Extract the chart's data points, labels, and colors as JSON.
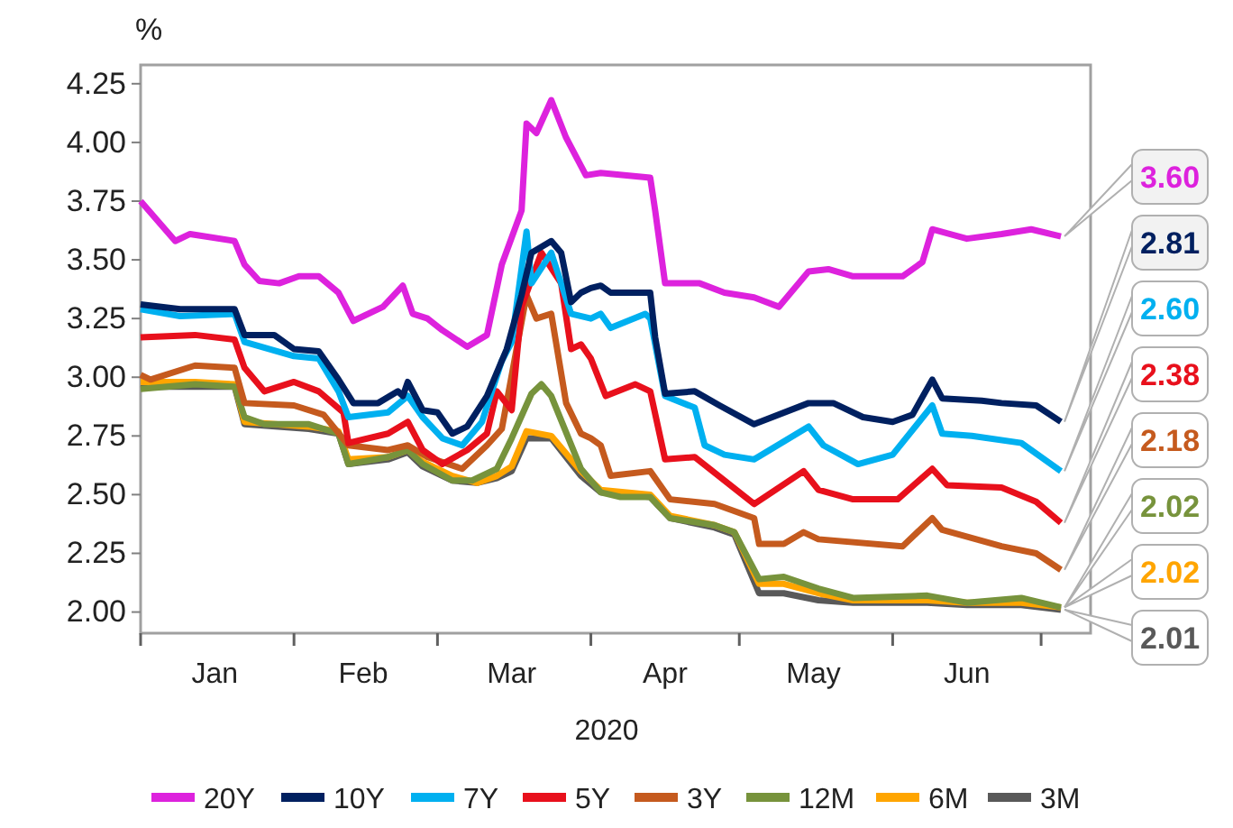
{
  "chart_data": {
    "type": "line",
    "ylabel": "%",
    "xlabel": "2020",
    "xlim": [
      "2020-01-01",
      "2020-07-11"
    ],
    "xticks": [
      {
        "value": "2020-01-01",
        "label": null
      },
      {
        "value": "2020-01-16",
        "label": "Jan"
      },
      {
        "value": "2020-02-01",
        "label": null
      },
      {
        "value": "2020-02-15",
        "label": "Feb"
      },
      {
        "value": "2020-03-01",
        "label": null
      },
      {
        "value": "2020-03-16",
        "label": "Mar"
      },
      {
        "value": "2020-04-01",
        "label": null
      },
      {
        "value": "2020-04-16",
        "label": "Apr"
      },
      {
        "value": "2020-05-01",
        "label": null
      },
      {
        "value": "2020-05-16",
        "label": "May"
      },
      {
        "value": "2020-06-01",
        "label": null
      },
      {
        "value": "2020-06-16",
        "label": "Jun"
      },
      {
        "value": "2020-07-01",
        "label": null
      }
    ],
    "ylim": [
      1.91,
      4.33
    ],
    "yticks": [
      {
        "value": 2,
        "label": "2.00"
      },
      {
        "value": 2.25,
        "label": "2.25"
      },
      {
        "value": 2.5,
        "label": "2.50"
      },
      {
        "value": 2.75,
        "label": "2.75"
      },
      {
        "value": 3,
        "label": "3.00"
      },
      {
        "value": 3.25,
        "label": "3.25"
      },
      {
        "value": 3.5,
        "label": "3.50"
      },
      {
        "value": 3.75,
        "label": "3.75"
      },
      {
        "value": 4,
        "label": "4.00"
      },
      {
        "value": 4.25,
        "label": "4.25"
      }
    ],
    "grid": false,
    "legend": "bottom",
    "marker": "none",
    "line_style": "solid",
    "series": [
      {
        "name": "20Y",
        "color": "#dd22dd",
        "x": [
          "2020-01-01",
          "2020-01-08",
          "2020-01-11",
          "2020-01-20",
          "2020-01-22",
          "2020-01-25",
          "2020-01-29",
          "2020-02-02",
          "2020-02-06",
          "2020-02-10",
          "2020-02-13",
          "2020-02-19",
          "2020-02-23",
          "2020-02-25",
          "2020-02-28",
          "2020-03-02",
          "2020-03-07",
          "2020-03-11",
          "2020-03-14",
          "2020-03-18",
          "2020-03-19",
          "2020-03-21",
          "2020-03-24",
          "2020-03-27",
          "2020-03-31",
          "2020-04-03",
          "2020-04-13",
          "2020-04-14",
          "2020-04-16",
          "2020-04-23",
          "2020-04-28",
          "2020-05-04",
          "2020-05-09",
          "2020-05-15",
          "2020-05-19",
          "2020-05-24",
          "2020-06-03",
          "2020-06-07",
          "2020-06-09",
          "2020-06-16",
          "2020-06-23",
          "2020-06-29",
          "2020-07-05"
        ],
        "values": [
          3.75,
          3.58,
          3.61,
          3.58,
          3.48,
          3.41,
          3.4,
          3.43,
          3.43,
          3.36,
          3.24,
          3.3,
          3.39,
          3.27,
          3.25,
          3.2,
          3.13,
          3.18,
          3.48,
          3.71,
          4.08,
          4.04,
          4.18,
          4.02,
          3.86,
          3.87,
          3.85,
          3.71,
          3.4,
          3.4,
          3.36,
          3.34,
          3.3,
          3.45,
          3.46,
          3.43,
          3.43,
          3.49,
          3.63,
          3.59,
          3.61,
          3.63,
          3.6
        ]
      },
      {
        "name": "10Y",
        "color": "#002060",
        "x": [
          "2020-01-01",
          "2020-01-09",
          "2020-01-20",
          "2020-01-22",
          "2020-01-28",
          "2020-02-01",
          "2020-02-06",
          "2020-02-10",
          "2020-02-13",
          "2020-02-18",
          "2020-02-22",
          "2020-02-23",
          "2020-02-24",
          "2020-02-27",
          "2020-03-01",
          "2020-03-04",
          "2020-03-07",
          "2020-03-11",
          "2020-03-15",
          "2020-03-18",
          "2020-03-20",
          "2020-03-24",
          "2020-03-26",
          "2020-03-28",
          "2020-03-30",
          "2020-04-01",
          "2020-04-03",
          "2020-04-05",
          "2020-04-13",
          "2020-04-14",
          "2020-04-16",
          "2020-04-22",
          "2020-04-27",
          "2020-05-04",
          "2020-05-15",
          "2020-05-20",
          "2020-05-26",
          "2020-06-01",
          "2020-06-05",
          "2020-06-09",
          "2020-06-11",
          "2020-06-19",
          "2020-06-23",
          "2020-06-30",
          "2020-07-05"
        ],
        "values": [
          3.31,
          3.29,
          3.29,
          3.18,
          3.18,
          3.12,
          3.11,
          2.99,
          2.89,
          2.89,
          2.94,
          2.92,
          2.98,
          2.86,
          2.85,
          2.76,
          2.79,
          2.92,
          3.12,
          3.35,
          3.53,
          3.58,
          3.53,
          3.32,
          3.36,
          3.38,
          3.39,
          3.36,
          3.36,
          3.17,
          2.93,
          2.94,
          2.88,
          2.8,
          2.89,
          2.89,
          2.83,
          2.81,
          2.84,
          2.99,
          2.91,
          2.9,
          2.89,
          2.88,
          2.81
        ]
      },
      {
        "name": "7Y",
        "color": "#00b0f0",
        "x": [
          "2020-01-01",
          "2020-01-09",
          "2020-01-20",
          "2020-01-22",
          "2020-02-01",
          "2020-02-06",
          "2020-02-10",
          "2020-02-12",
          "2020-02-20",
          "2020-02-24",
          "2020-02-27",
          "2020-03-02",
          "2020-03-06",
          "2020-03-10",
          "2020-03-14",
          "2020-03-16",
          "2020-03-19",
          "2020-03-20",
          "2020-03-24",
          "2020-03-28",
          "2020-04-01",
          "2020-04-03",
          "2020-04-05",
          "2020-04-12",
          "2020-04-13",
          "2020-04-16",
          "2020-04-22",
          "2020-04-24",
          "2020-04-28",
          "2020-05-04",
          "2020-05-15",
          "2020-05-18",
          "2020-05-25",
          "2020-06-01",
          "2020-06-09",
          "2020-06-11",
          "2020-06-17",
          "2020-06-27",
          "2020-07-05"
        ],
        "values": [
          3.29,
          3.26,
          3.27,
          3.15,
          3.09,
          3.08,
          2.94,
          2.83,
          2.85,
          2.92,
          2.83,
          2.74,
          2.71,
          2.81,
          3.07,
          3.15,
          3.62,
          3.4,
          3.53,
          3.27,
          3.25,
          3.27,
          3.21,
          3.27,
          3.25,
          2.92,
          2.87,
          2.71,
          2.67,
          2.65,
          2.79,
          2.71,
          2.63,
          2.67,
          2.88,
          2.76,
          2.75,
          2.72,
          2.6
        ]
      },
      {
        "name": "5Y",
        "color": "#e8101c",
        "x": [
          "2020-01-01",
          "2020-01-12",
          "2020-01-20",
          "2020-01-22",
          "2020-01-26",
          "2020-02-01",
          "2020-02-06",
          "2020-02-11",
          "2020-02-12",
          "2020-02-20",
          "2020-02-24",
          "2020-02-27",
          "2020-03-02",
          "2020-03-07",
          "2020-03-11",
          "2020-03-13",
          "2020-03-16",
          "2020-03-18",
          "2020-03-22",
          "2020-03-26",
          "2020-03-28",
          "2020-03-30",
          "2020-04-01",
          "2020-04-04",
          "2020-04-10",
          "2020-04-13",
          "2020-04-16",
          "2020-04-22",
          "2020-04-25",
          "2020-05-04",
          "2020-05-14",
          "2020-05-17",
          "2020-05-24",
          "2020-06-02",
          "2020-06-09",
          "2020-06-12",
          "2020-06-23",
          "2020-06-30",
          "2020-07-05"
        ],
        "values": [
          3.17,
          3.18,
          3.16,
          3.04,
          2.94,
          2.98,
          2.94,
          2.85,
          2.72,
          2.76,
          2.81,
          2.69,
          2.63,
          2.69,
          2.76,
          2.94,
          2.86,
          3.3,
          3.53,
          3.4,
          3.12,
          3.14,
          3.08,
          2.92,
          2.97,
          2.94,
          2.65,
          2.66,
          2.61,
          2.46,
          2.6,
          2.52,
          2.48,
          2.48,
          2.61,
          2.54,
          2.53,
          2.47,
          2.38
        ]
      },
      {
        "name": "3Y",
        "color": "#c55a1e",
        "x": [
          "2020-01-01",
          "2020-01-03",
          "2020-01-12",
          "2020-01-20",
          "2020-01-22",
          "2020-02-01",
          "2020-02-07",
          "2020-02-12",
          "2020-02-20",
          "2020-02-24",
          "2020-02-28",
          "2020-03-06",
          "2020-03-11",
          "2020-03-14",
          "2020-03-19",
          "2020-03-21",
          "2020-03-24",
          "2020-03-27",
          "2020-03-30",
          "2020-04-01",
          "2020-04-03",
          "2020-04-05",
          "2020-04-13",
          "2020-04-17",
          "2020-04-26",
          "2020-05-04",
          "2020-05-05",
          "2020-05-10",
          "2020-05-14",
          "2020-05-17",
          "2020-06-03",
          "2020-06-09",
          "2020-06-11",
          "2020-06-23",
          "2020-06-30",
          "2020-07-05"
        ],
        "values": [
          3.01,
          2.99,
          3.05,
          3.04,
          2.89,
          2.88,
          2.84,
          2.71,
          2.69,
          2.71,
          2.66,
          2.61,
          2.71,
          2.78,
          3.35,
          3.25,
          3.27,
          2.89,
          2.76,
          2.74,
          2.71,
          2.58,
          2.6,
          2.48,
          2.46,
          2.4,
          2.29,
          2.29,
          2.34,
          2.31,
          2.28,
          2.4,
          2.35,
          2.28,
          2.25,
          2.18
        ]
      },
      {
        "name": "12M",
        "color": "#77933c",
        "x": [
          "2020-01-01",
          "2020-01-12",
          "2020-01-20",
          "2020-01-22",
          "2020-01-26",
          "2020-02-04",
          "2020-02-10",
          "2020-02-12",
          "2020-02-20",
          "2020-02-24",
          "2020-02-27",
          "2020-03-04",
          "2020-03-08",
          "2020-03-13",
          "2020-03-16",
          "2020-03-20",
          "2020-03-22",
          "2020-03-24",
          "2020-03-30",
          "2020-04-03",
          "2020-04-07",
          "2020-04-13",
          "2020-04-17",
          "2020-04-26",
          "2020-04-30",
          "2020-05-05",
          "2020-05-10",
          "2020-05-17",
          "2020-05-24",
          "2020-06-08",
          "2020-06-16",
          "2020-06-27",
          "2020-07-05"
        ],
        "values": [
          2.95,
          2.97,
          2.96,
          2.83,
          2.8,
          2.8,
          2.76,
          2.63,
          2.66,
          2.69,
          2.63,
          2.56,
          2.56,
          2.61,
          2.74,
          2.93,
          2.97,
          2.92,
          2.61,
          2.51,
          2.49,
          2.49,
          2.4,
          2.37,
          2.34,
          2.14,
          2.15,
          2.1,
          2.06,
          2.07,
          2.04,
          2.06,
          2.02
        ]
      },
      {
        "name": "6M",
        "color": "#ffa500",
        "x": [
          "2020-01-01",
          "2020-01-12",
          "2020-01-20",
          "2020-01-22",
          "2020-02-04",
          "2020-02-10",
          "2020-02-12",
          "2020-02-20",
          "2020-02-24",
          "2020-02-27",
          "2020-03-04",
          "2020-03-09",
          "2020-03-13",
          "2020-03-16",
          "2020-03-19",
          "2020-03-24",
          "2020-03-30",
          "2020-04-03",
          "2020-04-13",
          "2020-04-17",
          "2020-04-26",
          "2020-04-30",
          "2020-05-05",
          "2020-05-10",
          "2020-05-17",
          "2020-05-24",
          "2020-06-08",
          "2020-06-16",
          "2020-06-27",
          "2020-07-05"
        ],
        "values": [
          2.98,
          2.98,
          2.97,
          2.81,
          2.79,
          2.77,
          2.65,
          2.66,
          2.69,
          2.64,
          2.58,
          2.55,
          2.58,
          2.62,
          2.77,
          2.75,
          2.6,
          2.52,
          2.5,
          2.41,
          2.37,
          2.34,
          2.12,
          2.12,
          2.08,
          2.05,
          2.05,
          2.04,
          2.04,
          2.02
        ]
      },
      {
        "name": "3M",
        "color": "#595959",
        "x": [
          "2020-01-01",
          "2020-01-12",
          "2020-01-20",
          "2020-01-22",
          "2020-02-04",
          "2020-02-10",
          "2020-02-12",
          "2020-02-20",
          "2020-02-24",
          "2020-02-27",
          "2020-03-04",
          "2020-03-09",
          "2020-03-13",
          "2020-03-16",
          "2020-03-19",
          "2020-03-24",
          "2020-03-30",
          "2020-04-03",
          "2020-04-13",
          "2020-04-17",
          "2020-04-26",
          "2020-04-30",
          "2020-05-05",
          "2020-05-10",
          "2020-05-17",
          "2020-05-24",
          "2020-06-08",
          "2020-06-16",
          "2020-06-27",
          "2020-07-05"
        ],
        "values": [
          2.96,
          2.96,
          2.96,
          2.8,
          2.78,
          2.76,
          2.63,
          2.65,
          2.68,
          2.62,
          2.56,
          2.55,
          2.57,
          2.6,
          2.74,
          2.74,
          2.58,
          2.51,
          2.49,
          2.4,
          2.36,
          2.33,
          2.08,
          2.08,
          2.05,
          2.04,
          2.04,
          2.03,
          2.03,
          2.01
        ]
      }
    ],
    "annotations": [
      {
        "text": "3.60",
        "x": "2020-07-05",
        "y": 3.6
      },
      {
        "text": "2.81",
        "x": "2020-07-05",
        "y": 2.81
      },
      {
        "text": "2.60",
        "x": "2020-07-05",
        "y": 2.6
      },
      {
        "text": "2.38",
        "x": "2020-07-05",
        "y": 2.38
      },
      {
        "text": "2.18",
        "x": "2020-07-05",
        "y": 2.18
      },
      {
        "text": "2.02",
        "x": "2020-07-05",
        "y": 2.02
      },
      "2.02",
      {
        "text": "2.01",
        "x": "2020-07-05",
        "y": 2.01
      }
    ]
  }
}
